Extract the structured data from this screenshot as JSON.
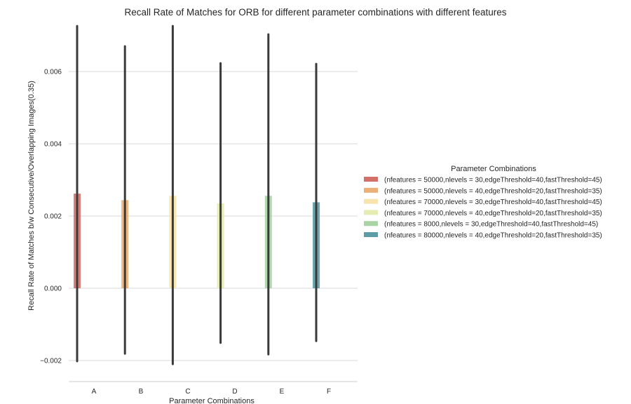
{
  "chart_data": {
    "type": "bar",
    "title": "Recall Rate of Matches for ORB for different parameter combinations with different features",
    "xlabel": "Parameter Combinations",
    "ylabel": "Recall Rate of Matches b/w Consecutive/Overlapping Images(0.35)",
    "categories": [
      "A",
      "B",
      "C",
      "D",
      "E",
      "F"
    ],
    "ylim": [
      -0.0022,
      0.0073
    ],
    "yticks": [
      -0.002,
      0.0,
      0.002,
      0.004,
      0.006
    ],
    "ytick_labels": [
      "−0.002",
      "0.000",
      "0.002",
      "0.004",
      "0.006"
    ],
    "grid": true,
    "legend": {
      "title": "Parameter Combinations",
      "placement": "right"
    },
    "series": [
      {
        "name": "(nfeatures = 50000,nlevels = 30,edgeThreshold=40,fastThreshold=45)",
        "color": "#d3706a",
        "category": "A",
        "value": 0.00262,
        "err_low": -0.00202,
        "err_high": 0.00726
      },
      {
        "name": "(nfeatures = 50000,nlevels = 40,edgeThreshold=20,fastThreshold=35)",
        "color": "#ebb077",
        "category": "B",
        "value": 0.00244,
        "err_low": -0.00181,
        "err_high": 0.0067
      },
      {
        "name": "(nfeatures = 70000,nlevels = 30,edgeThreshold=40,fastThreshold=45)",
        "color": "#f7e3ad",
        "category": "C",
        "value": 0.00256,
        "err_low": -0.0021,
        "err_high": 0.00726
      },
      {
        "name": "(nfeatures = 70000,nlevels = 40,edgeThreshold=20,fastThreshold=35)",
        "color": "#e6ecb1",
        "category": "D",
        "value": 0.00235,
        "err_low": -0.00151,
        "err_high": 0.00623
      },
      {
        "name": "(nfeatures = 8000,nlevels = 30,edgeThreshold=40,fastThreshold=45)",
        "color": "#a9d4a6",
        "category": "E",
        "value": 0.00256,
        "err_low": -0.00183,
        "err_high": 0.00703
      },
      {
        "name": "(nfeatures = 80000,nlevels = 40,edgeThreshold=20,fastThreshold=35)",
        "color": "#5b9ca5",
        "category": "F",
        "value": 0.00238,
        "err_low": -0.00146,
        "err_high": 0.00621
      }
    ]
  }
}
